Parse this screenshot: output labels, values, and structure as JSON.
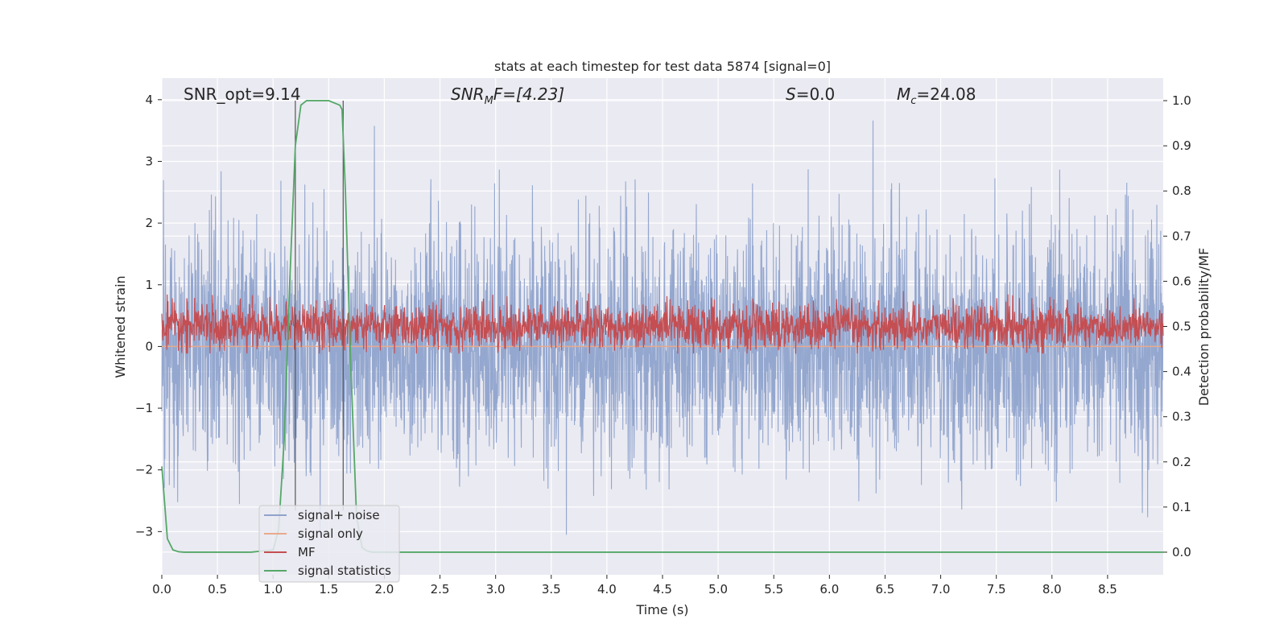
{
  "chart_data": {
    "type": "line",
    "title": "stats at each timestep for test data 5874 [signal=0]",
    "xlabel": "Time (s)",
    "ylabel": "Whitened strain",
    "y2label": "Detection probability/MF",
    "xlim": [
      0.0,
      9.0
    ],
    "ylim": [
      -3.7,
      4.35
    ],
    "y2lim": [
      -0.05,
      1.05
    ],
    "x_ticks": [
      "0.0",
      "0.5",
      "1.0",
      "1.5",
      "2.0",
      "2.5",
      "3.0",
      "3.5",
      "4.0",
      "4.5",
      "5.0",
      "5.5",
      "6.0",
      "6.5",
      "7.0",
      "7.5",
      "8.0",
      "8.5"
    ],
    "y_ticks": [
      "−3",
      "−2",
      "−1",
      "0",
      "1",
      "2",
      "3",
      "4"
    ],
    "y2_ticks": [
      "0.0",
      "0.1",
      "0.2",
      "0.3",
      "0.4",
      "0.5",
      "0.6",
      "0.7",
      "0.8",
      "0.9",
      "1.0"
    ],
    "grid": true,
    "legend_position": "lower-left",
    "annotations": {
      "snr_opt": "SNR_opt=9.14",
      "snr_mf_base": "SNR",
      "snr_mf_sub": "M",
      "snr_mf_rest": "F=[4.23]",
      "s_var": "S",
      "s_val": "=0.0",
      "mc_var": "M",
      "mc_sub": "c",
      "mc_val": "=24.08"
    },
    "vlines": [
      1.2,
      1.63
    ],
    "series": [
      {
        "name": "signal+ noise",
        "color": "#8fa3cc",
        "description_stats": {
          "min": -3.3,
          "max": 3.95,
          "typical_abs": 1.0
        }
      },
      {
        "name": "signal only",
        "color": "#e9a98b",
        "values_constant": 0.0
      },
      {
        "name": "MF",
        "color": "#c44e52",
        "axis": "right",
        "description_stats": {
          "baseline": 0.5,
          "max": 0.59,
          "min": 0.44
        }
      },
      {
        "name": "signal statistics",
        "color": "#55a868",
        "axis": "right",
        "x": [
          0.0,
          0.05,
          0.1,
          0.15,
          0.2,
          0.3,
          0.5,
          0.8,
          1.0,
          1.05,
          1.1,
          1.15,
          1.2,
          1.25,
          1.3,
          1.4,
          1.5,
          1.6,
          1.62,
          1.65,
          1.7,
          1.75,
          1.8,
          1.85,
          1.9,
          2.0,
          3.0,
          4.0,
          5.0,
          6.0,
          7.0,
          8.0,
          9.0
        ],
        "values": [
          0.19,
          0.03,
          0.005,
          0.001,
          0.0,
          0.0,
          0.0,
          0.0,
          0.005,
          0.05,
          0.25,
          0.6,
          0.9,
          0.99,
          1.0,
          1.0,
          1.0,
          0.99,
          0.98,
          0.8,
          0.4,
          0.08,
          0.01,
          0.002,
          0.0,
          0.0,
          0.0,
          0.0,
          0.0,
          0.0,
          0.0,
          0.0,
          0.0
        ]
      }
    ]
  }
}
